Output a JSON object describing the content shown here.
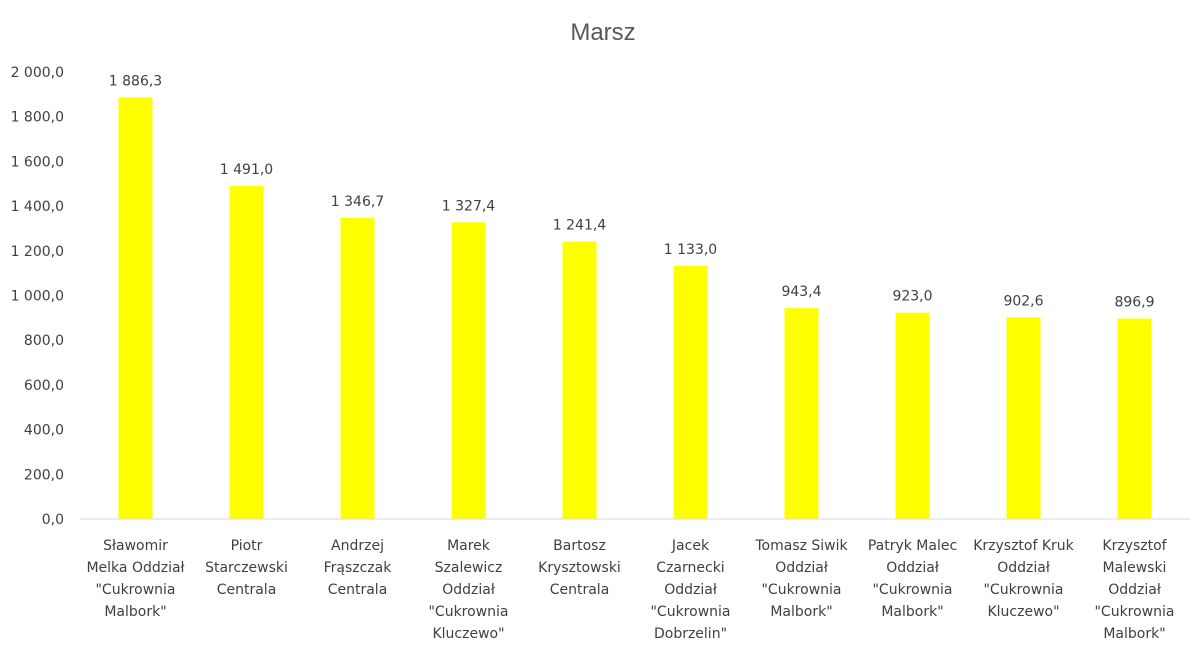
{
  "chart_data": {
    "type": "bar",
    "title": "Marsz",
    "xlabel": "",
    "ylabel": "",
    "ylim": [
      0,
      2000
    ],
    "yticks": [
      0,
      200,
      400,
      600,
      800,
      1000,
      1200,
      1400,
      1600,
      1800,
      2000
    ],
    "ytick_labels": [
      "0,0",
      "200,0",
      "400,0",
      "600,0",
      "800,0",
      "1 000,0",
      "1 200,0",
      "1 400,0",
      "1 600,0",
      "1 800,0",
      "2 000,0"
    ],
    "grid": false,
    "legend": "none",
    "bar_color": "#ffff00",
    "categories": [
      [
        "Sławomir",
        "Melka Oddział",
        "\"Cukrownia",
        "Malbork\""
      ],
      [
        "Piotr",
        "Starczewski",
        "Centrala"
      ],
      [
        "Andrzej",
        "Frąszczak",
        "Centrala"
      ],
      [
        "Marek",
        "Szalewicz",
        "Oddział",
        "\"Cukrownia",
        "Kluczewo\""
      ],
      [
        "Bartosz",
        "Krysztowski",
        "Centrala"
      ],
      [
        "Jacek",
        "Czarnecki",
        "Oddział",
        "\"Cukrownia",
        "Dobrzelin\""
      ],
      [
        "Tomasz Siwik",
        "Oddział",
        "\"Cukrownia",
        "Malbork\""
      ],
      [
        "Patryk Malec",
        "Oddział",
        "\"Cukrownia",
        "Malbork\""
      ],
      [
        "Krzysztof Kruk",
        "Oddział",
        "\"Cukrownia",
        "Kluczewo\""
      ],
      [
        "Krzysztof",
        "Malewski",
        "Oddział",
        "\"Cukrownia",
        "Malbork\""
      ]
    ],
    "values": [
      1886.3,
      1491.0,
      1346.7,
      1327.4,
      1241.4,
      1133.0,
      943.4,
      923.0,
      902.6,
      896.9
    ],
    "data_labels": [
      "1 886,3",
      "1 491,0",
      "1 346,7",
      "1 327,4",
      "1 241,4",
      "1 133,0",
      "943,4",
      "923,0",
      "902,6",
      "896,9"
    ]
  }
}
